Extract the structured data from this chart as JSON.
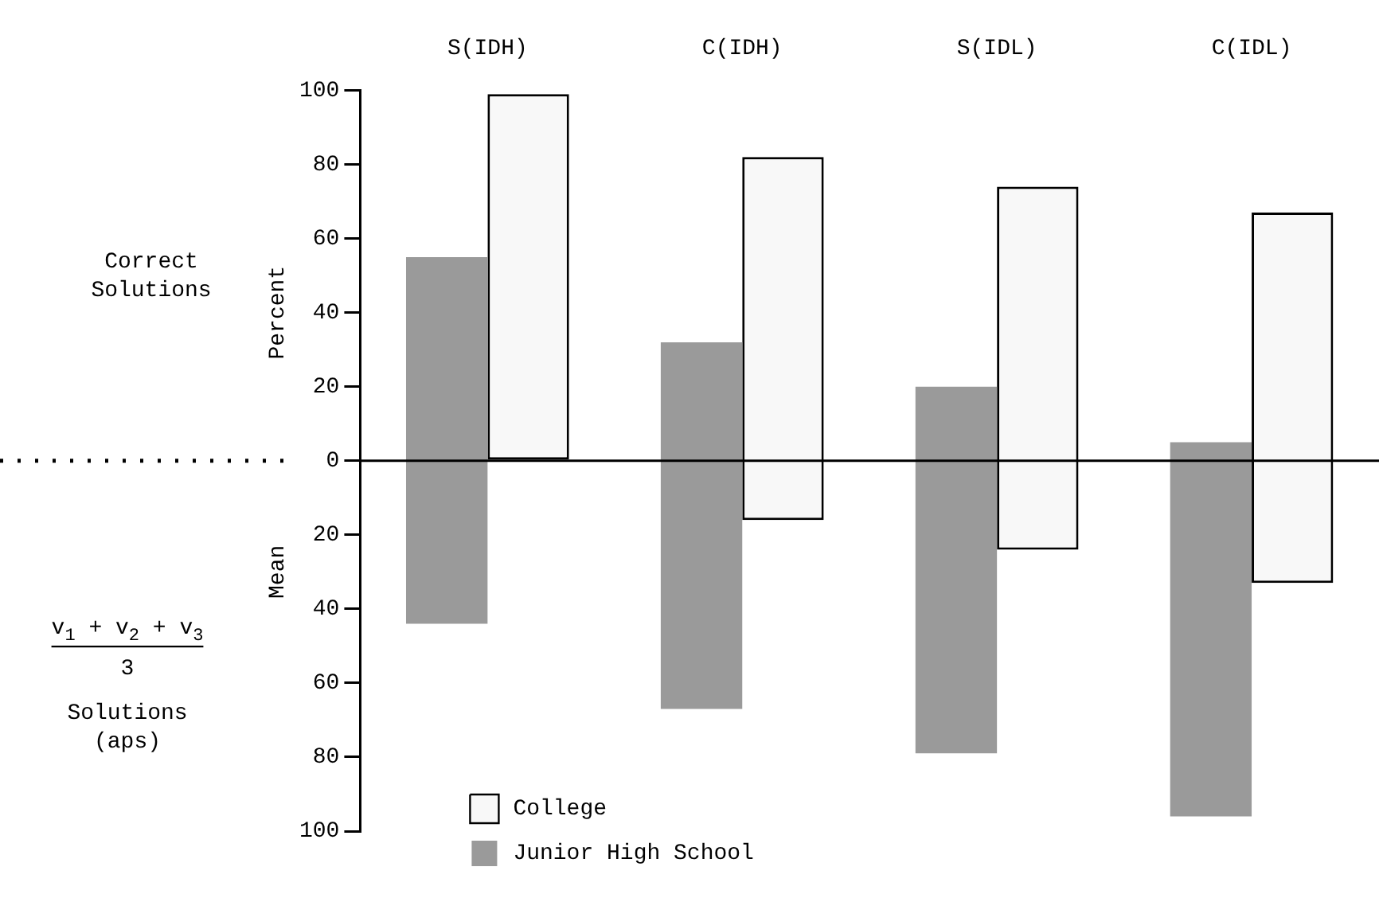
{
  "chart_data": {
    "type": "bar",
    "categories": [
      "S(IDH)",
      "C(IDH)",
      "S(IDL)",
      "C(IDL)"
    ],
    "series": [
      {
        "name": "Junior High School",
        "color": "#9a9a9a",
        "base": [
          -44,
          -67,
          -79,
          -96
        ],
        "values": [
          99,
          99,
          99,
          101
        ]
      },
      {
        "name": "College",
        "color": "#f8f8f8",
        "base": [
          0,
          -16,
          -24,
          -33
        ],
        "values": [
          99,
          98,
          98,
          100
        ]
      }
    ],
    "ylabel": "Percent",
    "annotations": [
      "Correct Solutions",
      "v$_{1}$ + v$_{2}$ + v$_{3}$",
      "3",
      "Solutions (aps)",
      "Mean"
    ],
    "ylim": [
      -100,
      100
    ],
    "yticks": [
      {
        "value": -100,
        "label": "100"
      },
      {
        "value": -80,
        "label": "80"
      },
      {
        "value": -60,
        "label": "60"
      },
      {
        "value": -40,
        "label": "40"
      },
      {
        "value": -20,
        "label": "20"
      },
      0,
      20,
      40,
      60,
      80,
      100
    ],
    "ref_lines": [
      {
        "axis": "y",
        "value": 0
      }
    ],
    "legend": "bottom left",
    "grid": false
  }
}
